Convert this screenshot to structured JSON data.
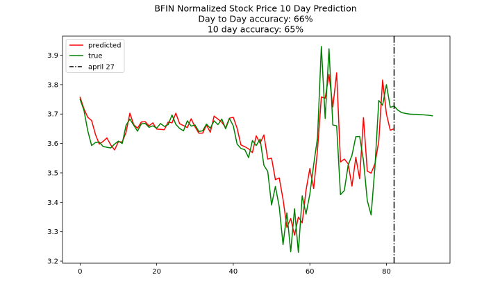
{
  "chart_data": {
    "type": "line",
    "title_lines": [
      "BFIN Normalized Stock Price 10 Day Prediction",
      "Day to Day accuracy: 66%",
      "10 day accuracy: 65%"
    ],
    "xlabel": "",
    "ylabel": "",
    "xlim": [
      -4.6,
      96.6
    ],
    "ylim": [
      3.193,
      3.965
    ],
    "x_ticks": [
      0,
      20,
      40,
      60,
      80
    ],
    "y_ticks": [
      3.2,
      3.3,
      3.4,
      3.5,
      3.6,
      3.7,
      3.8,
      3.9
    ],
    "y_tick_labels": [
      "3.2",
      "3.3",
      "3.4",
      "3.5",
      "3.6",
      "3.7",
      "3.8",
      "3.9"
    ],
    "grid": false,
    "legend_position": "top-left",
    "series": [
      {
        "name": "predicted",
        "color": "#ff0000",
        "x_start": 0,
        "values": [
          3.757,
          3.718,
          3.689,
          3.678,
          3.631,
          3.598,
          3.607,
          3.619,
          3.595,
          3.578,
          3.606,
          3.605,
          3.638,
          3.703,
          3.664,
          3.652,
          3.673,
          3.674,
          3.66,
          3.67,
          3.649,
          3.648,
          3.647,
          3.673,
          3.67,
          3.703,
          3.667,
          3.661,
          3.654,
          3.684,
          3.657,
          3.635,
          3.635,
          3.663,
          3.638,
          3.693,
          3.683,
          3.672,
          3.654,
          3.686,
          3.689,
          3.652,
          3.595,
          3.589,
          3.582,
          3.569,
          3.626,
          3.601,
          3.629,
          3.547,
          3.55,
          3.477,
          3.483,
          3.41,
          3.315,
          3.345,
          3.288,
          3.35,
          3.33,
          3.441,
          3.515,
          3.447,
          3.578,
          3.758,
          3.754,
          3.835,
          3.724,
          3.84,
          3.537,
          3.547,
          3.531,
          3.455,
          3.553,
          3.48,
          3.688,
          3.506,
          3.499,
          3.531,
          3.608,
          3.816,
          3.7,
          3.645,
          3.65
        ]
      },
      {
        "name": "true",
        "color": "#008000",
        "x_start": 0,
        "values": [
          3.75,
          3.713,
          3.643,
          3.593,
          3.603,
          3.605,
          3.59,
          3.587,
          3.585,
          3.598,
          3.608,
          3.6,
          3.662,
          3.683,
          3.662,
          3.642,
          3.667,
          3.668,
          3.655,
          3.66,
          3.652,
          3.668,
          3.658,
          3.664,
          3.697,
          3.665,
          3.651,
          3.643,
          3.677,
          3.659,
          3.663,
          3.641,
          3.643,
          3.666,
          3.652,
          3.677,
          3.664,
          3.683,
          3.65,
          3.685,
          3.66,
          3.598,
          3.583,
          3.579,
          3.552,
          3.61,
          3.593,
          3.615,
          3.526,
          3.505,
          3.391,
          3.454,
          3.385,
          3.256,
          3.364,
          3.232,
          3.378,
          3.23,
          3.422,
          3.36,
          3.428,
          3.528,
          3.62,
          3.93,
          3.685,
          3.922,
          3.663,
          3.66,
          3.426,
          3.44,
          3.526,
          3.56,
          3.623,
          3.624,
          3.542,
          3.406,
          3.357,
          3.52,
          3.746,
          3.73,
          3.8,
          3.723,
          3.727,
          3.713,
          3.705,
          3.702,
          3.7,
          3.699,
          3.699,
          3.698,
          3.697,
          3.696,
          3.694
        ]
      }
    ],
    "reference_lines": [
      {
        "name": "april 27",
        "x": 82,
        "color": "#000000",
        "style": "dashdot"
      }
    ]
  }
}
